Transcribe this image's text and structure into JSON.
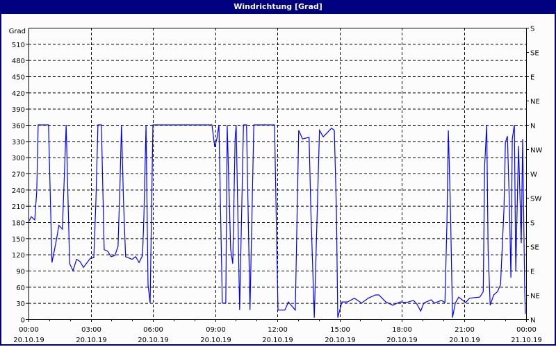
{
  "window": {
    "title": "Windrichtung [Grad]"
  },
  "chart_data": {
    "type": "line",
    "title": "Windrichtung [Grad]",
    "ylabel": "Grad",
    "ylim": [
      0,
      540
    ],
    "yticks": [
      0,
      30,
      60,
      90,
      120,
      150,
      180,
      210,
      240,
      270,
      300,
      330,
      360,
      390,
      420,
      450,
      480,
      510
    ],
    "y2ticks": [
      {
        "value": 540,
        "label": "S"
      },
      {
        "value": 495,
        "label": "SE"
      },
      {
        "value": 450,
        "label": "E"
      },
      {
        "value": 405,
        "label": "NE"
      },
      {
        "value": 360,
        "label": "N"
      },
      {
        "value": 315,
        "label": "NW"
      },
      {
        "value": 270,
        "label": "W"
      },
      {
        "value": 225,
        "label": "SW"
      },
      {
        "value": 180,
        "label": "S"
      },
      {
        "value": 135,
        "label": "SE"
      },
      {
        "value": 90,
        "label": "E"
      },
      {
        "value": 45,
        "label": "NE"
      },
      {
        "value": 0,
        "label": "N"
      }
    ],
    "xrange": [
      "20.10.19 00:00",
      "21.10.19 00:00"
    ],
    "xticks": [
      {
        "time": "00:00",
        "date": "20.10.19"
      },
      {
        "time": "03:00",
        "date": "20.10.19"
      },
      {
        "time": "06:00",
        "date": "20.10.19"
      },
      {
        "time": "09:00",
        "date": "20.10.19"
      },
      {
        "time": "12:00",
        "date": "20.10.19"
      },
      {
        "time": "15:00",
        "date": "20.10.19"
      },
      {
        "time": "18:00",
        "date": "20.10.19"
      },
      {
        "time": "21:00",
        "date": "20.10.19"
      },
      {
        "time": "00:00",
        "date": "21.10.19"
      }
    ],
    "grid": true,
    "series": [
      {
        "color": "#0000ff",
        "points": [
          [
            "00:00",
            180
          ],
          [
            "00:08",
            190
          ],
          [
            "00:18",
            184
          ],
          [
            "00:24",
            238
          ],
          [
            "00:28",
            360
          ],
          [
            "00:58",
            360
          ],
          [
            "01:02",
            257
          ],
          [
            "01:08",
            105
          ],
          [
            "01:19",
            141
          ],
          [
            "01:28",
            174
          ],
          [
            "01:38",
            167
          ],
          [
            "01:44",
            270
          ],
          [
            "01:49",
            360
          ],
          [
            "01:53",
            257
          ],
          [
            "01:59",
            103
          ],
          [
            "02:09",
            90
          ],
          [
            "02:19",
            111
          ],
          [
            "02:29",
            107
          ],
          [
            "02:39",
            96
          ],
          [
            "02:59",
            113
          ],
          [
            "03:09",
            114
          ],
          [
            "03:15",
            219
          ],
          [
            "03:21",
            360
          ],
          [
            "03:31",
            360
          ],
          [
            "03:39",
            129
          ],
          [
            "03:49",
            126
          ],
          [
            "03:59",
            116
          ],
          [
            "04:10",
            118
          ],
          [
            "04:19",
            135
          ],
          [
            "04:25",
            257
          ],
          [
            "04:29",
            360
          ],
          [
            "04:35",
            219
          ],
          [
            "04:41",
            116
          ],
          [
            "05:00",
            111
          ],
          [
            "05:10",
            116
          ],
          [
            "05:20",
            105
          ],
          [
            "05:30",
            118
          ],
          [
            "05:34",
            193
          ],
          [
            "05:40",
            360
          ],
          [
            "05:46",
            64
          ],
          [
            "05:52",
            30
          ],
          [
            "06:00",
            360
          ],
          [
            "08:51",
            360
          ],
          [
            "08:59",
            319
          ],
          [
            "09:05",
            334
          ],
          [
            "09:11",
            360
          ],
          [
            "09:21",
            30
          ],
          [
            "09:31",
            30
          ],
          [
            "09:35",
            360
          ],
          [
            "09:45",
            129
          ],
          [
            "09:51",
            103
          ],
          [
            "09:58",
            334
          ],
          [
            "10:01",
            360
          ],
          [
            "10:11",
            17
          ],
          [
            "10:22",
            360
          ],
          [
            "10:31",
            360
          ],
          [
            "10:41",
            17
          ],
          [
            "10:52",
            360
          ],
          [
            "11:52",
            360
          ],
          [
            "12:02",
            17
          ],
          [
            "12:22",
            17
          ],
          [
            "12:32",
            32
          ],
          [
            "12:52",
            17
          ],
          [
            "13:02",
            350
          ],
          [
            "13:13",
            334
          ],
          [
            "13:32",
            337
          ],
          [
            "13:37",
            206
          ],
          [
            "13:47",
            3
          ],
          [
            "14:02",
            350
          ],
          [
            "14:13",
            338
          ],
          [
            "14:37",
            354
          ],
          [
            "14:45",
            350
          ],
          [
            "14:51",
            206
          ],
          [
            "14:55",
            3
          ],
          [
            "15:07",
            32
          ],
          [
            "15:23",
            32
          ],
          [
            "15:43",
            39
          ],
          [
            "16:04",
            30
          ],
          [
            "16:23",
            39
          ],
          [
            "16:44",
            45
          ],
          [
            "16:54",
            45
          ],
          [
            "17:14",
            32
          ],
          [
            "17:34",
            26
          ],
          [
            "17:55",
            32
          ],
          [
            "18:14",
            31
          ],
          [
            "18:34",
            35
          ],
          [
            "18:44",
            28
          ],
          [
            "18:55",
            15
          ],
          [
            "19:04",
            30
          ],
          [
            "19:25",
            36
          ],
          [
            "19:35",
            30
          ],
          [
            "19:55",
            35
          ],
          [
            "20:05",
            31
          ],
          [
            "20:11",
            180
          ],
          [
            "20:15",
            350
          ],
          [
            "20:21",
            206
          ],
          [
            "20:27",
            3
          ],
          [
            "20:35",
            30
          ],
          [
            "20:45",
            41
          ],
          [
            "21:05",
            31
          ],
          [
            "21:16",
            39
          ],
          [
            "21:46",
            41
          ],
          [
            "21:56",
            51
          ],
          [
            "22:00",
            283
          ],
          [
            "22:06",
            360
          ],
          [
            "22:10",
            129
          ],
          [
            "22:16",
            26
          ],
          [
            "22:26",
            45
          ],
          [
            "22:37",
            51
          ],
          [
            "22:46",
            64
          ],
          [
            "22:56",
            206
          ],
          [
            "23:00",
            328
          ],
          [
            "23:06",
            339
          ],
          [
            "23:12",
            206
          ],
          [
            "23:16",
            77
          ],
          [
            "23:20",
            334
          ],
          [
            "23:26",
            360
          ],
          [
            "23:30",
            90
          ],
          [
            "23:38",
            321
          ],
          [
            "23:46",
            141
          ],
          [
            "23:50",
            334
          ],
          [
            "23:56",
            51
          ],
          [
            "23:58",
            10
          ]
        ]
      }
    ]
  }
}
